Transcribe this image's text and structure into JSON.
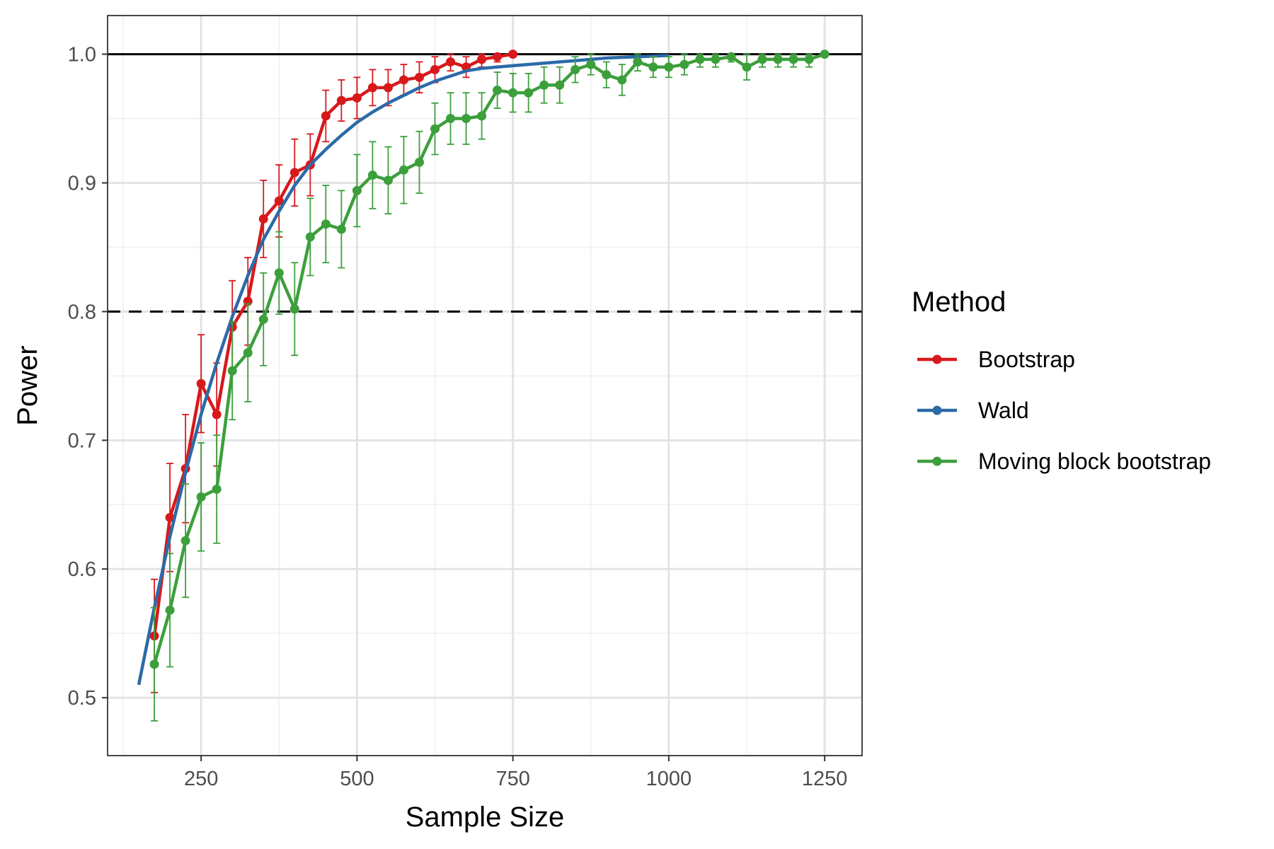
{
  "chart_data": {
    "type": "line",
    "xlabel": "Sample Size",
    "ylabel": "Power",
    "xlim": [
      100,
      1310
    ],
    "ylim": [
      0.455,
      1.03
    ],
    "x_ticks": [
      250,
      500,
      750,
      1000,
      1250
    ],
    "y_ticks": [
      0.5,
      0.6,
      0.7,
      0.8,
      0.9,
      1.0
    ],
    "grid": true,
    "reference_lines": [
      {
        "y": 1.0,
        "style": "solid",
        "color": "#000000"
      },
      {
        "y": 0.8,
        "style": "dashed",
        "color": "#000000"
      }
    ],
    "legend": {
      "title": "Method",
      "placement": "right"
    },
    "series": [
      {
        "name": "Bootstrap",
        "color": "#d7191c",
        "markers": true,
        "error_bars": true,
        "x": [
          175,
          200,
          225,
          250,
          275,
          300,
          325,
          350,
          375,
          400,
          425,
          450,
          475,
          500,
          525,
          550,
          575,
          600,
          625,
          650,
          675,
          700,
          725,
          750
        ],
        "y": [
          0.548,
          0.64,
          0.678,
          0.744,
          0.72,
          0.788,
          0.808,
          0.872,
          0.886,
          0.908,
          0.914,
          0.952,
          0.964,
          0.966,
          0.974,
          0.974,
          0.98,
          0.982,
          0.988,
          0.994,
          0.99,
          0.996,
          0.998,
          1.0
        ],
        "lower": [
          0.504,
          0.598,
          0.636,
          0.706,
          0.68,
          0.752,
          0.774,
          0.842,
          0.858,
          0.882,
          0.89,
          0.932,
          0.948,
          0.95,
          0.96,
          0.96,
          0.968,
          0.97,
          0.978,
          0.987,
          0.982,
          0.99,
          0.994,
          1.0
        ],
        "upper": [
          0.592,
          0.682,
          0.72,
          0.782,
          0.76,
          0.824,
          0.842,
          0.902,
          0.914,
          0.934,
          0.938,
          0.972,
          0.98,
          0.982,
          0.988,
          0.988,
          0.992,
          0.994,
          0.998,
          1.0,
          0.998,
          1.0,
          1.0,
          1.0
        ]
      },
      {
        "name": "Wald",
        "color": "#2c6aa8",
        "markers": false,
        "error_bars": false,
        "x": [
          150,
          175,
          200,
          225,
          250,
          275,
          300,
          325,
          350,
          375,
          400,
          425,
          450,
          475,
          500,
          525,
          550,
          575,
          600,
          625,
          650,
          675,
          700,
          750,
          800,
          850,
          900,
          950,
          1000
        ],
        "y": [
          0.51,
          0.57,
          0.625,
          0.675,
          0.72,
          0.76,
          0.796,
          0.828,
          0.856,
          0.878,
          0.898,
          0.914,
          0.926,
          0.937,
          0.947,
          0.955,
          0.962,
          0.968,
          0.974,
          0.979,
          0.983,
          0.987,
          0.989,
          0.991,
          0.993,
          0.995,
          0.997,
          0.998,
          0.999
        ]
      },
      {
        "name": "Moving block bootstrap",
        "color": "#3c9f3c",
        "markers": true,
        "error_bars": true,
        "x": [
          175,
          200,
          225,
          250,
          275,
          300,
          325,
          350,
          375,
          400,
          425,
          450,
          475,
          500,
          525,
          550,
          575,
          600,
          625,
          650,
          675,
          700,
          725,
          750,
          775,
          800,
          825,
          850,
          875,
          900,
          925,
          950,
          975,
          1000,
          1025,
          1050,
          1075,
          1100,
          1125,
          1150,
          1175,
          1200,
          1225,
          1250
        ],
        "y": [
          0.526,
          0.568,
          0.622,
          0.656,
          0.662,
          0.754,
          0.768,
          0.794,
          0.83,
          0.802,
          0.858,
          0.868,
          0.864,
          0.894,
          0.906,
          0.902,
          0.91,
          0.916,
          0.942,
          0.95,
          0.95,
          0.952,
          0.972,
          0.97,
          0.97,
          0.976,
          0.976,
          0.988,
          0.992,
          0.984,
          0.98,
          0.994,
          0.99,
          0.99,
          0.992,
          0.996,
          0.996,
          0.998,
          0.99,
          0.996,
          0.996,
          0.996,
          0.996,
          1.0
        ],
        "lower": [
          0.482,
          0.524,
          0.578,
          0.614,
          0.62,
          0.716,
          0.73,
          0.758,
          0.798,
          0.766,
          0.828,
          0.838,
          0.834,
          0.866,
          0.88,
          0.876,
          0.884,
          0.892,
          0.922,
          0.93,
          0.93,
          0.934,
          0.958,
          0.955,
          0.955,
          0.962,
          0.962,
          0.978,
          0.984,
          0.974,
          0.968,
          0.987,
          0.982,
          0.982,
          0.984,
          0.99,
          0.99,
          0.994,
          0.98,
          0.99,
          0.99,
          0.99,
          0.99,
          1.0
        ],
        "upper": [
          0.57,
          0.612,
          0.666,
          0.698,
          0.704,
          0.792,
          0.806,
          0.83,
          0.862,
          0.838,
          0.888,
          0.898,
          0.894,
          0.922,
          0.932,
          0.928,
          0.936,
          0.94,
          0.962,
          0.97,
          0.97,
          0.97,
          0.986,
          0.985,
          0.985,
          0.99,
          0.99,
          0.998,
          1.0,
          0.994,
          0.992,
          1.0,
          0.998,
          0.998,
          1.0,
          1.0,
          1.0,
          1.0,
          1.0,
          1.0,
          1.0,
          1.0,
          1.0,
          1.0
        ]
      }
    ]
  }
}
